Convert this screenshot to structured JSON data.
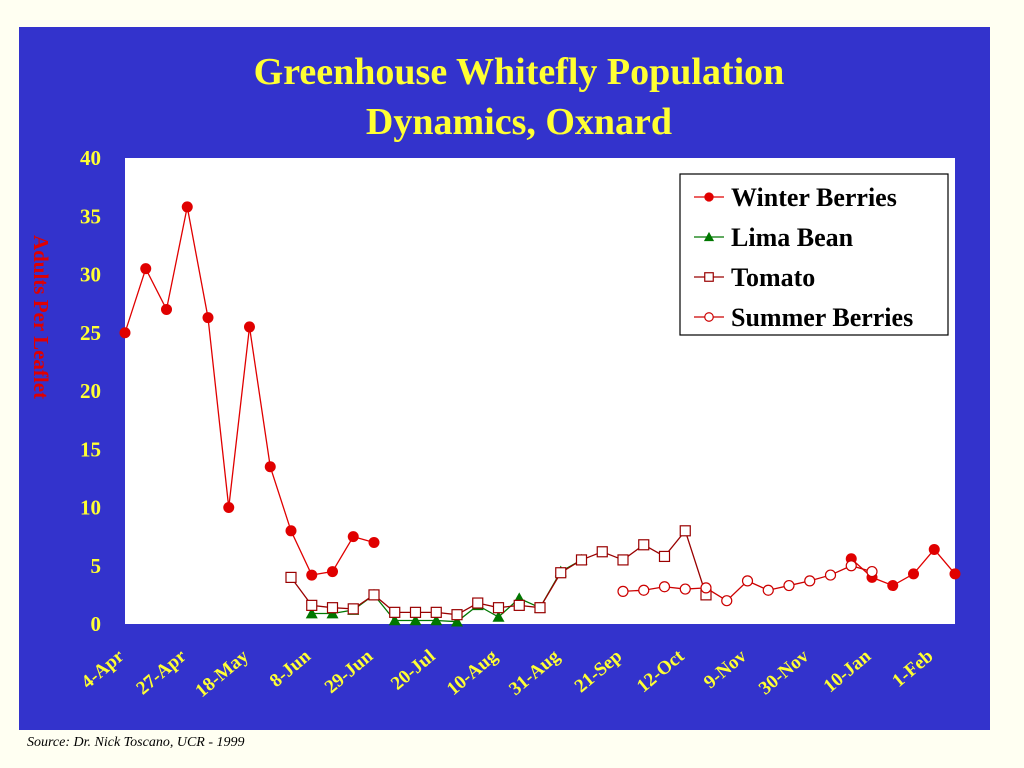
{
  "source_note": "Source: Dr. Nick Toscano, UCR - 1999",
  "colors": {
    "slide_background": "#3333CC",
    "title": "#FFFF33",
    "axis_labels": "#FFFF33",
    "y_axis_title": "#E00000",
    "plot_background": "#FFFFFF",
    "winter_berries": "#E00000",
    "lima_bean": "#007700",
    "tomato": "#990000",
    "summer_berries": "#CC0000"
  },
  "chart_data": {
    "type": "line",
    "title": [
      "Greenhouse Whitefly Population",
      "Dynamics, Oxnard"
    ],
    "xlabel": "",
    "ylabel": "Adults Per Leaflet",
    "ylim": [
      0,
      40
    ],
    "yticks": [
      0,
      5,
      10,
      15,
      20,
      25,
      30,
      35,
      40
    ],
    "x_positions": 41,
    "xtick_labels": [
      {
        "label": "4-Apr",
        "index": 0
      },
      {
        "label": "27-Apr",
        "index": 3
      },
      {
        "label": "18-May",
        "index": 6
      },
      {
        "label": "8-Jun",
        "index": 9
      },
      {
        "label": "29-Jun",
        "index": 12
      },
      {
        "label": "20-Jul",
        "index": 15
      },
      {
        "label": "10-Aug",
        "index": 18
      },
      {
        "label": "31-Aug",
        "index": 21
      },
      {
        "label": "21-Sep",
        "index": 24
      },
      {
        "label": "12-Oct",
        "index": 27
      },
      {
        "label": "9-Nov",
        "index": 30
      },
      {
        "label": "30-Nov",
        "index": 33
      },
      {
        "label": "10-Jan",
        "index": 36
      },
      {
        "label": "1-Feb",
        "index": 39
      }
    ],
    "grid": false,
    "legend_position": "top-right",
    "series": [
      {
        "name": "Winter Berries",
        "marker": "filled-circle",
        "color": "#E00000",
        "segments": [
          [
            [
              0,
              25.0
            ],
            [
              1,
              30.5
            ],
            [
              2,
              27.0
            ],
            [
              3,
              35.8
            ],
            [
              4,
              26.3
            ],
            [
              5,
              10.0
            ],
            [
              6,
              25.5
            ],
            [
              7,
              13.5
            ],
            [
              8,
              8.0
            ],
            [
              9,
              4.2
            ],
            [
              10,
              4.5
            ],
            [
              11,
              7.5
            ],
            [
              12,
              7.0
            ]
          ],
          [
            [
              35,
              5.6
            ],
            [
              36,
              4.0
            ],
            [
              37,
              3.3
            ],
            [
              38,
              4.3
            ],
            [
              39,
              6.4
            ],
            [
              40,
              4.3
            ]
          ]
        ]
      },
      {
        "name": "Lima Bean",
        "marker": "filled-triangle",
        "color": "#007700",
        "segments": [
          [
            [
              9,
              0.9
            ],
            [
              10,
              0.9
            ],
            [
              11,
              1.2
            ],
            [
              12,
              2.5
            ],
            [
              13,
              0.3
            ],
            [
              14,
              0.3
            ],
            [
              15,
              0.3
            ],
            [
              16,
              0.2
            ],
            [
              17,
              1.6
            ],
            [
              18,
              0.6
            ],
            [
              19,
              2.2
            ],
            [
              20,
              1.4
            ],
            [
              21,
              4.5
            ],
            [
              22,
              5.5
            ]
          ]
        ]
      },
      {
        "name": "Tomato",
        "marker": "open-square",
        "color": "#990000",
        "segments": [
          [
            [
              8,
              4.0
            ],
            [
              9,
              1.6
            ],
            [
              10,
              1.4
            ],
            [
              11,
              1.3
            ],
            [
              12,
              2.5
            ],
            [
              13,
              1.0
            ],
            [
              14,
              1.0
            ],
            [
              15,
              1.0
            ],
            [
              16,
              0.8
            ],
            [
              17,
              1.8
            ],
            [
              18,
              1.4
            ],
            [
              19,
              1.6
            ],
            [
              20,
              1.4
            ],
            [
              21,
              4.4
            ],
            [
              22,
              5.5
            ],
            [
              23,
              6.2
            ],
            [
              24,
              5.5
            ],
            [
              25,
              6.8
            ],
            [
              26,
              5.8
            ],
            [
              27,
              8.0
            ],
            [
              28,
              2.5
            ]
          ]
        ]
      },
      {
        "name": "Summer Berries",
        "marker": "open-circle",
        "color": "#CC0000",
        "segments": [
          [
            [
              24,
              2.8
            ],
            [
              25,
              2.9
            ],
            [
              26,
              3.2
            ],
            [
              27,
              3.0
            ],
            [
              28,
              3.1
            ],
            [
              29,
              2.0
            ],
            [
              30,
              3.7
            ],
            [
              31,
              2.9
            ],
            [
              32,
              3.3
            ],
            [
              33,
              3.7
            ],
            [
              34,
              4.2
            ],
            [
              35,
              5.0
            ],
            [
              36,
              4.5
            ]
          ]
        ]
      }
    ]
  }
}
